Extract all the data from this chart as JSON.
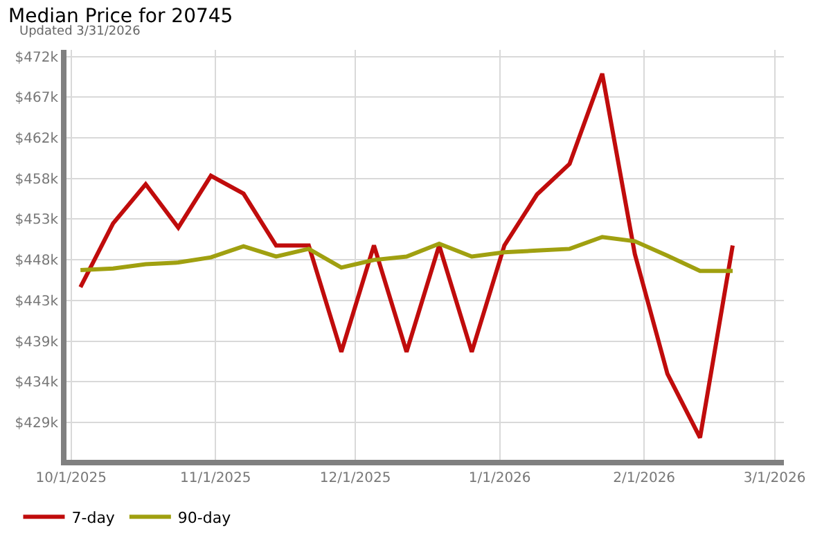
{
  "chart_data": {
    "type": "line",
    "title": "Median Price for 20745",
    "subtitle": "Updated 3/31/2026",
    "x": [
      "2025-10-03",
      "2025-10-10",
      "2025-10-17",
      "2025-10-24",
      "2025-10-31",
      "2025-11-07",
      "2025-11-14",
      "2025-11-21",
      "2025-11-28",
      "2025-12-05",
      "2025-12-12",
      "2025-12-19",
      "2025-12-26",
      "2026-01-02",
      "2026-01-09",
      "2026-01-16",
      "2026-01-23",
      "2026-01-30",
      "2026-02-06",
      "2026-02-13",
      "2026-02-20"
    ],
    "series": [
      {
        "name": "7-day",
        "color": "#c00c0c",
        "values": [
          444900,
          452400,
          457000,
          451900,
          458000,
          455900,
          449800,
          449800,
          437300,
          449800,
          437300,
          449800,
          437300,
          449800,
          455800,
          459400,
          470000,
          448800,
          434700,
          427200,
          449800
        ]
      },
      {
        "name": "90-day",
        "color": "#a0a010",
        "values": [
          446900,
          447100,
          447600,
          447800,
          448400,
          449700,
          448500,
          449400,
          447200,
          448100,
          448500,
          450000,
          448500,
          449000,
          449200,
          449400,
          450800,
          450300,
          448600,
          446800,
          446800
        ]
      }
    ],
    "xlim": [
      "2025-09-30",
      "2026-03-03"
    ],
    "xticks": [
      {
        "value": "2025-10-01",
        "label": "10/1/2025"
      },
      {
        "value": "2025-11-01",
        "label": "11/1/2025"
      },
      {
        "value": "2025-12-01",
        "label": "12/1/2025"
      },
      {
        "value": "2026-01-01",
        "label": "1/1/2026"
      },
      {
        "value": "2026-02-01",
        "label": "2/1/2026"
      },
      {
        "value": "2026-03-01",
        "label": "3/1/2026"
      }
    ],
    "ylim": [
      424600,
      472800
    ],
    "yticks": [
      {
        "value": 429000,
        "label": "$429k"
      },
      {
        "value": 433780,
        "label": "$434k"
      },
      {
        "value": 438560,
        "label": "$439k"
      },
      {
        "value": 443340,
        "label": "$443k"
      },
      {
        "value": 448120,
        "label": "$448k"
      },
      {
        "value": 452900,
        "label": "$453k"
      },
      {
        "value": 457680,
        "label": "$458k"
      },
      {
        "value": 462460,
        "label": "$462k"
      },
      {
        "value": 467240,
        "label": "$467k"
      },
      {
        "value": 472020,
        "label": "$472k"
      }
    ],
    "grid": true,
    "legend": "bottom left",
    "marker": "none",
    "line_style": "solid"
  }
}
